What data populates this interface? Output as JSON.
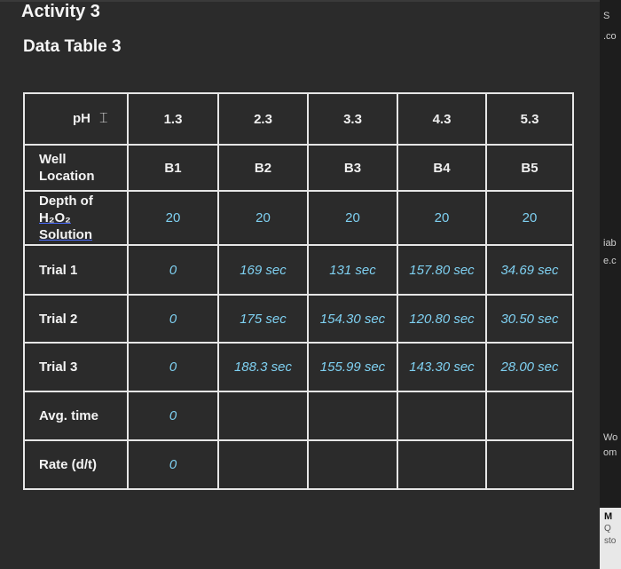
{
  "header": {
    "activity": "Activity 3",
    "subtitle": "Data Table 3"
  },
  "table": {
    "corner_label": "pH",
    "ph_values": [
      "1.3",
      "2.3",
      "3.3",
      "4.3",
      "5.3"
    ],
    "well_label_line1": "Well",
    "well_label_line2": "Location",
    "wells": [
      "B1",
      "B2",
      "B3",
      "B4",
      "B5"
    ],
    "depth_label_line1": "Depth of",
    "depth_label_line2": "H₂O₂",
    "depth_label_line3": "Solution",
    "depths": [
      "20",
      "20",
      "20",
      "20",
      "20"
    ],
    "rows": [
      {
        "label": "Trial 1",
        "cells": [
          "0",
          "169 sec",
          "131 sec",
          "157.80 sec",
          "34.69 sec"
        ]
      },
      {
        "label": "Trial 2",
        "cells": [
          "0",
          "175 sec",
          "154.30 sec",
          "120.80 sec",
          "30.50 sec"
        ]
      },
      {
        "label": "Trial 3",
        "cells": [
          "0",
          "188.3 sec",
          "155.99 sec",
          "143.30 sec",
          "28.00 sec"
        ]
      },
      {
        "label": "Avg. time",
        "cells": [
          "0",
          "",
          "",
          "",
          ""
        ]
      },
      {
        "label": "Rate (d/t)",
        "cells": [
          "0",
          "",
          "",
          "",
          ""
        ]
      }
    ]
  },
  "edge_fragments": [
    "S",
    ".co",
    "iab",
    "e.c",
    "Wo",
    "om",
    "M",
    "Q",
    "sto"
  ]
}
